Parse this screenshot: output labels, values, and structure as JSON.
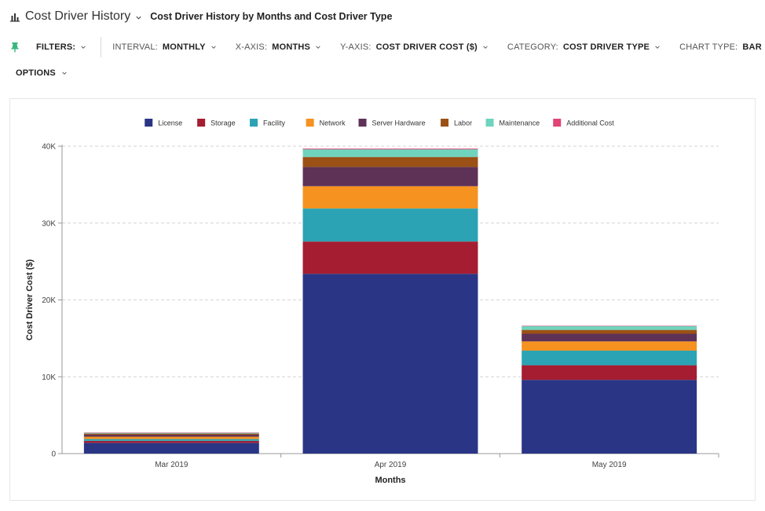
{
  "header": {
    "title": "Cost Driver History",
    "subtitle": "Cost Driver History by Months and Cost Driver Type"
  },
  "toolbar": {
    "filters_label": "FILTERS:",
    "interval": {
      "label": "INTERVAL:",
      "value": "MONTHLY"
    },
    "x_axis": {
      "label": "X-AXIS:",
      "value": "MONTHS"
    },
    "y_axis": {
      "label": "Y-AXIS:",
      "value": "COST DRIVER COST ($)"
    },
    "category": {
      "label": "CATEGORY:",
      "value": "COST DRIVER TYPE"
    },
    "chart_type": {
      "label": "CHART TYPE:",
      "value": "BAR"
    },
    "options_label": "OPTIONS"
  },
  "colors": {
    "accent_green": "#3bb77e",
    "License": "#2a3585",
    "Storage": "#a41d30",
    "Facility": "#2ba3b4",
    "Network": "#f59220",
    "Server Hardware": "#5e3157",
    "Labor": "#9b5116",
    "Maintenance": "#6fd3bd",
    "Additional Cost": "#e04575"
  },
  "icons": {
    "header": "bar-chart-icon",
    "filters": "pin-icon",
    "dropdown": "chevron-down-icon"
  },
  "chart_data": {
    "type": "bar",
    "stacked": true,
    "title": "",
    "xlabel": "Months",
    "ylabel": "Cost Driver Cost ($)",
    "ylim": [
      0,
      40000
    ],
    "yticks": [
      0,
      10000,
      20000,
      30000,
      40000
    ],
    "ytick_labels": [
      "0",
      "10K",
      "20K",
      "30K",
      "40K"
    ],
    "grid": true,
    "legend_position": "top-center",
    "categories": [
      "Mar 2019",
      "Apr 2019",
      "May 2019"
    ],
    "series": [
      {
        "name": "License",
        "values": [
          1400,
          23400,
          9600
        ]
      },
      {
        "name": "Storage",
        "values": [
          250,
          4200,
          1900
        ]
      },
      {
        "name": "Facility",
        "values": [
          250,
          4300,
          1900
        ]
      },
      {
        "name": "Network",
        "values": [
          300,
          2900,
          1200
        ]
      },
      {
        "name": "Server Hardware",
        "values": [
          250,
          2500,
          1000
        ]
      },
      {
        "name": "Labor",
        "values": [
          150,
          1300,
          500
        ]
      },
      {
        "name": "Maintenance",
        "values": [
          100,
          1000,
          500
        ]
      },
      {
        "name": "Additional Cost",
        "values": [
          50,
          100,
          50
        ]
      }
    ]
  }
}
